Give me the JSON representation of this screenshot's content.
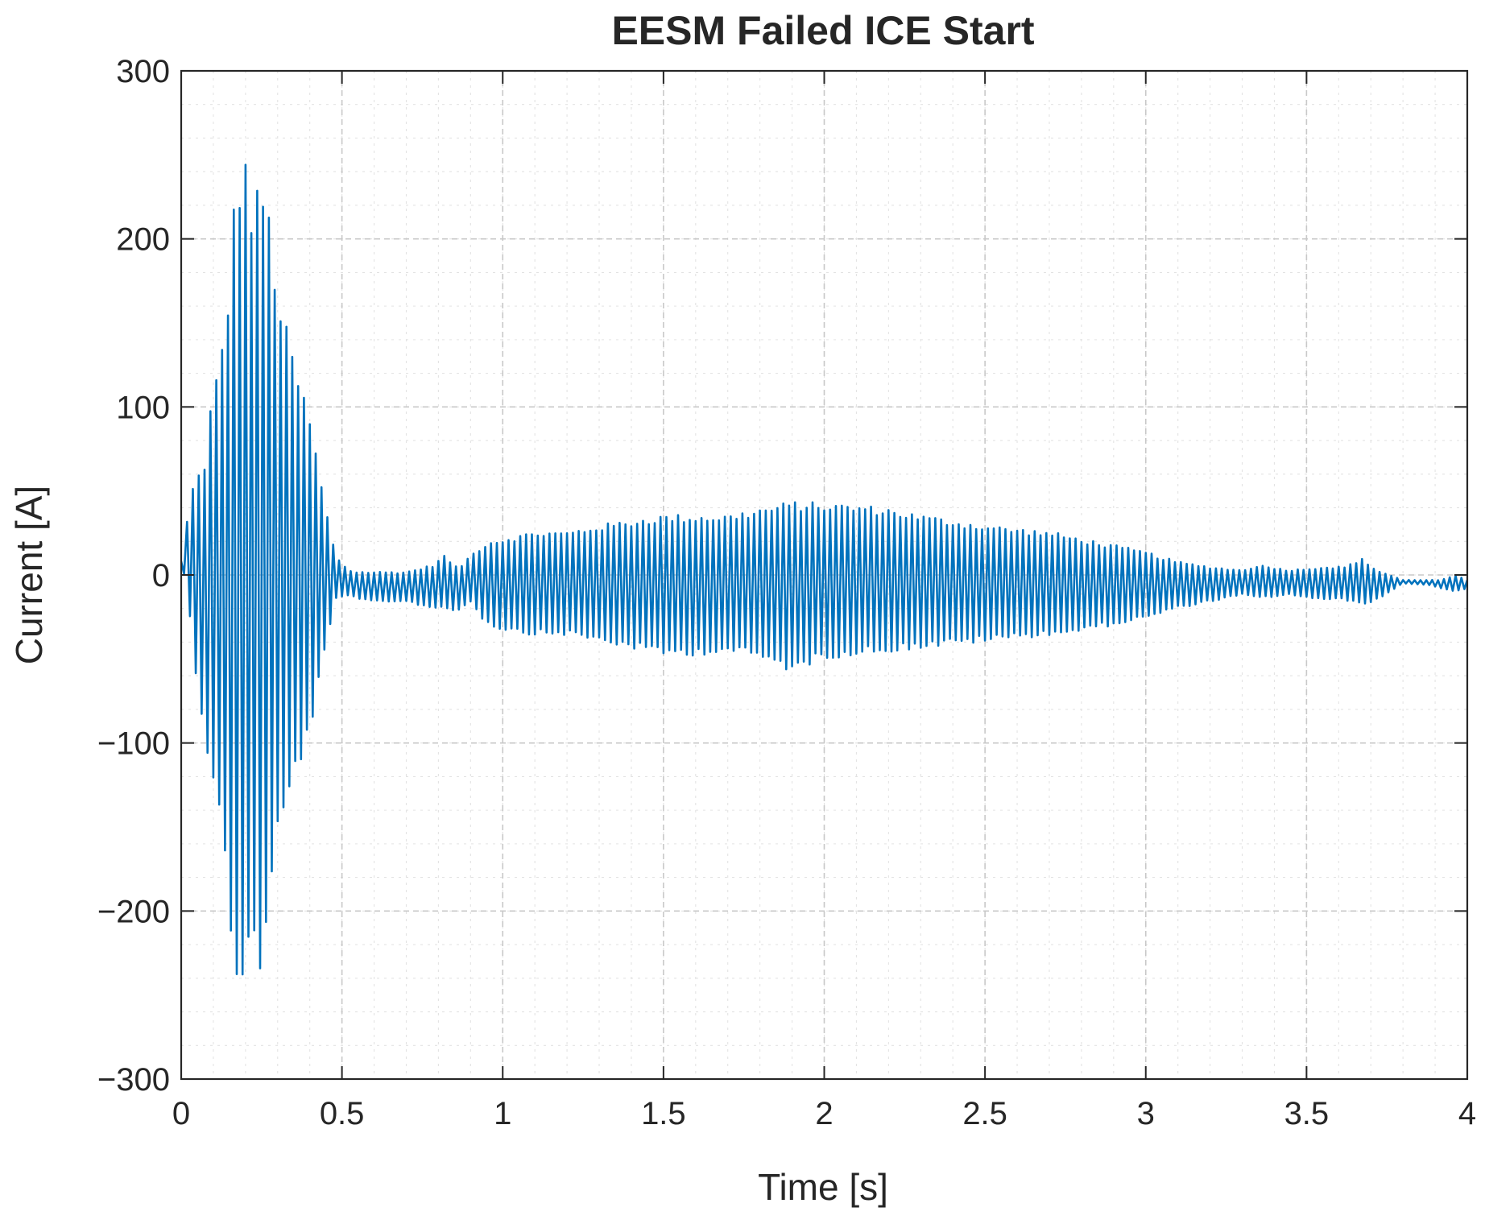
{
  "chart_data": {
    "type": "line",
    "title": "EESM Failed ICE Start",
    "xlabel": "Time [s]",
    "ylabel": "Current [A]",
    "xlim": [
      0,
      4
    ],
    "ylim": [
      -300,
      300
    ],
    "x_ticks": [
      0,
      0.5,
      1,
      1.5,
      2,
      2.5,
      3,
      3.5,
      4
    ],
    "x_tick_labels": [
      "0",
      "0.5",
      "1",
      "1.5",
      "2",
      "2.5",
      "3",
      "3.5",
      "4"
    ],
    "y_ticks": [
      -300,
      -200,
      -100,
      0,
      100,
      200,
      300
    ],
    "y_tick_labels": [
      "−300",
      "−200",
      "−100",
      "0",
      "100",
      "200",
      "300"
    ],
    "grid": true,
    "minor_grid": true,
    "series": [
      {
        "color": "#0072BD",
        "envelope": {
          "t": [
            0,
            0.02,
            0.05,
            0.07,
            0.09,
            0.11,
            0.13,
            0.15,
            0.17,
            0.19,
            0.2,
            0.22,
            0.25,
            0.28,
            0.3,
            0.35,
            0.4,
            0.45,
            0.48,
            0.52,
            0.55,
            0.6,
            0.7,
            0.78,
            0.82,
            0.86,
            0.9,
            0.95,
            1.0,
            1.1,
            1.2,
            1.3,
            1.4,
            1.5,
            1.6,
            1.7,
            1.8,
            1.9,
            2.0,
            2.1,
            2.2,
            2.3,
            2.4,
            2.5,
            2.6,
            2.7,
            2.8,
            2.9,
            3.0,
            3.1,
            3.2,
            3.3,
            3.35,
            3.45,
            3.55,
            3.62,
            3.67,
            3.72,
            3.8,
            3.88,
            3.92,
            3.96,
            4.0
          ],
          "upper": [
            8,
            35,
            68,
            60,
            100,
            120,
            145,
            180,
            240,
            248,
            252,
            220,
            240,
            210,
            170,
            130,
            95,
            40,
            12,
            3,
            2,
            2,
            2,
            6,
            12,
            4,
            12,
            20,
            22,
            26,
            26,
            30,
            33,
            36,
            36,
            36,
            40,
            44,
            43,
            42,
            40,
            36,
            33,
            30,
            28,
            26,
            22,
            18,
            14,
            8,
            5,
            3,
            6,
            3,
            5,
            5,
            10,
            3,
            -3,
            -3,
            -3,
            0,
            -3
          ],
          "lower": [
            8,
            -10,
            -70,
            -90,
            -120,
            -140,
            -165,
            -210,
            -240,
            -255,
            -240,
            -225,
            -240,
            -200,
            -160,
            -125,
            -95,
            -45,
            -15,
            -12,
            -15,
            -16,
            -16,
            -20,
            -20,
            -22,
            -16,
            -30,
            -33,
            -36,
            -36,
            -40,
            -44,
            -48,
            -48,
            -46,
            -50,
            -58,
            -50,
            -48,
            -46,
            -44,
            -42,
            -40,
            -38,
            -36,
            -34,
            -30,
            -26,
            -20,
            -16,
            -12,
            -14,
            -12,
            -15,
            -15,
            -18,
            -15,
            -5,
            -6,
            -8,
            -10,
            -8
          ]
        },
        "oscillation_hz": 55
      }
    ]
  }
}
